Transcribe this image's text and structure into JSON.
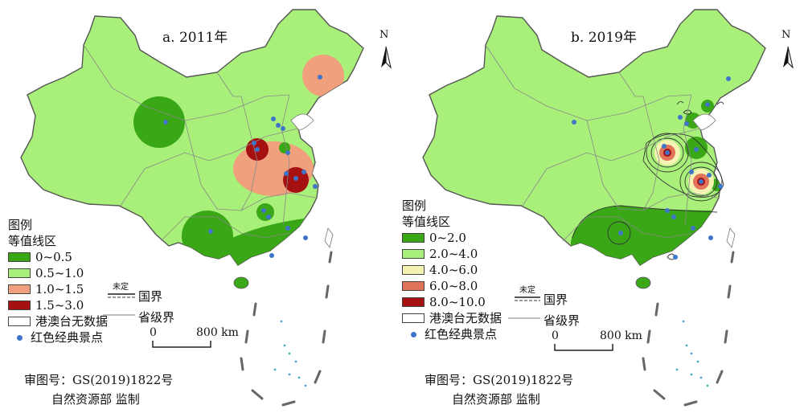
{
  "panels": [
    {
      "id": "a",
      "title": "a. 2011年",
      "north_label": "N",
      "legend": {
        "heading": "图例",
        "subheading": "等值线区",
        "classes": [
          {
            "label": "0~0.5",
            "color": "#3aa717"
          },
          {
            "label": "0.5~1.0",
            "color": "#a8f07a"
          },
          {
            "label": "1.0~1.5",
            "color": "#f0a07c"
          },
          {
            "label": "1.5~3.0",
            "color": "#a51010"
          }
        ],
        "no_data": "港澳台无数据",
        "spots": "红色经典景点"
      },
      "undetermined": "未定",
      "national_border": "国界",
      "provincial_border": "省级界",
      "scale": {
        "start": "0",
        "end": "800 km"
      },
      "approval": "审图号：GS(2019)1822号",
      "supervisor": "自然资源部  监制"
    },
    {
      "id": "b",
      "title": "b. 2019年",
      "north_label": "N",
      "legend": {
        "heading": "图例",
        "subheading": "等值线区",
        "classes": [
          {
            "label": "0~2.0",
            "color": "#3aa717"
          },
          {
            "label": "2.0~4.0",
            "color": "#a8f07a"
          },
          {
            "label": "4.0~6.0",
            "color": "#f5f3b4"
          },
          {
            "label": "6.0~8.0",
            "color": "#e0735a"
          },
          {
            "label": "8.0~10.0",
            "color": "#a51010"
          }
        ],
        "no_data": "港澳台无数据",
        "spots": "红色经典景点"
      },
      "undetermined": "未定",
      "national_border": "国界",
      "provincial_border": "省级界",
      "scale": {
        "start": "0",
        "end": "800 km"
      },
      "approval": "审图号：GS(2019)1822号",
      "supervisor": "自然资源部  监制"
    }
  ],
  "colors": {
    "base_fill": "#a8f07a",
    "border": "#888888",
    "spot": "#3f74c9",
    "sea": "#ffffff"
  }
}
